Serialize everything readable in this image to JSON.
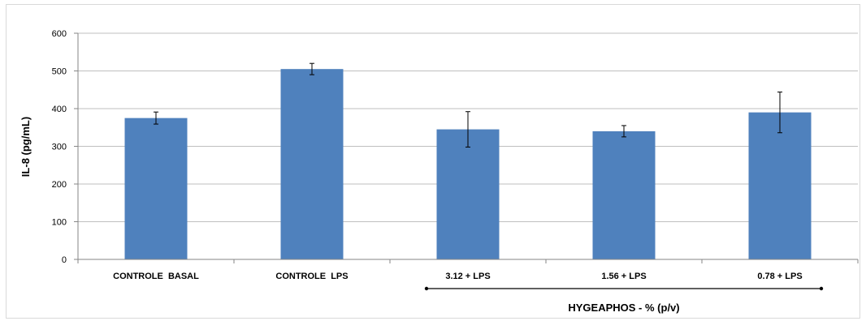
{
  "chart_data": {
    "type": "bar",
    "categories": [
      "CONTROLE  BASAL",
      "CONTROLE  LPS",
      "3.12 + LPS",
      "1.56 + LPS",
      "0.78 + LPS"
    ],
    "values": [
      375,
      505,
      345,
      340,
      390
    ],
    "errors": [
      16,
      15,
      47,
      15,
      54
    ],
    "ylabel": "IL-8 (pg/mL)",
    "xlabel": "",
    "ylim": [
      0,
      600
    ],
    "yticks": [
      0,
      100,
      200,
      300,
      400,
      500,
      600
    ],
    "grid": true,
    "legend": "none",
    "group_label": {
      "text": "HYGEAPHOS - % (p/v)",
      "first_category": 2,
      "last_category": 4
    },
    "colors": {
      "bar": "#4f81bd",
      "grid": "#bfbfbf",
      "axis": "#868686",
      "error": "#000000"
    }
  }
}
